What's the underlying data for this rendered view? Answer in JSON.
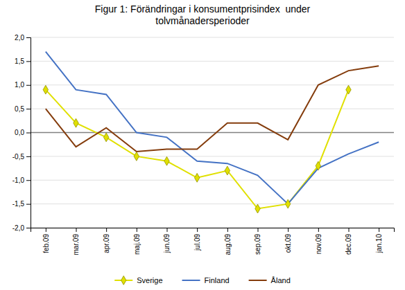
{
  "chart_data": {
    "type": "line",
    "title": "Figur 1: Förändringar i konsumentprisindex  under\ntolvmånadersperioder",
    "categories": [
      "feb.09",
      "mar.09",
      "apr.09",
      "maj.09",
      "jun.09",
      "jul.09",
      "aug.09",
      "sep.09",
      "okt.09",
      "nov.09",
      "dec.09",
      "jan.10"
    ],
    "series": [
      {
        "name": "Sverige",
        "color": "#e0e000",
        "marker": "diamond",
        "values": [
          0.9,
          0.2,
          -0.1,
          -0.5,
          -0.6,
          -0.95,
          -0.8,
          -1.6,
          -1.5,
          -0.7,
          0.9,
          null
        ]
      },
      {
        "name": "Finland",
        "color": "#4472c4",
        "values": [
          1.7,
          0.9,
          0.8,
          0.0,
          -0.1,
          -0.6,
          -0.65,
          -0.9,
          -1.5,
          -0.75,
          -0.45,
          -0.2
        ]
      },
      {
        "name": "Åland",
        "color": "#843c0c",
        "values": [
          0.5,
          -0.3,
          0.1,
          -0.4,
          -0.35,
          -0.35,
          0.2,
          0.2,
          -0.15,
          1.0,
          1.3,
          1.4
        ]
      }
    ],
    "ylim": [
      -2.0,
      2.0
    ],
    "yticks": [
      {
        "value": -2.0,
        "label": "-2,0"
      },
      {
        "value": -1.5,
        "label": "-1,5"
      },
      {
        "value": -1.0,
        "label": "-1,0"
      },
      {
        "value": -0.5,
        "label": "-0,5"
      },
      {
        "value": 0.0,
        "label": "0,0"
      },
      {
        "value": 0.5,
        "label": "0,5"
      },
      {
        "value": 1.0,
        "label": "1,0"
      },
      {
        "value": 1.5,
        "label": "1,5"
      },
      {
        "value": 2.0,
        "label": "2,0"
      }
    ],
    "grid": true,
    "legend": "bottom"
  }
}
